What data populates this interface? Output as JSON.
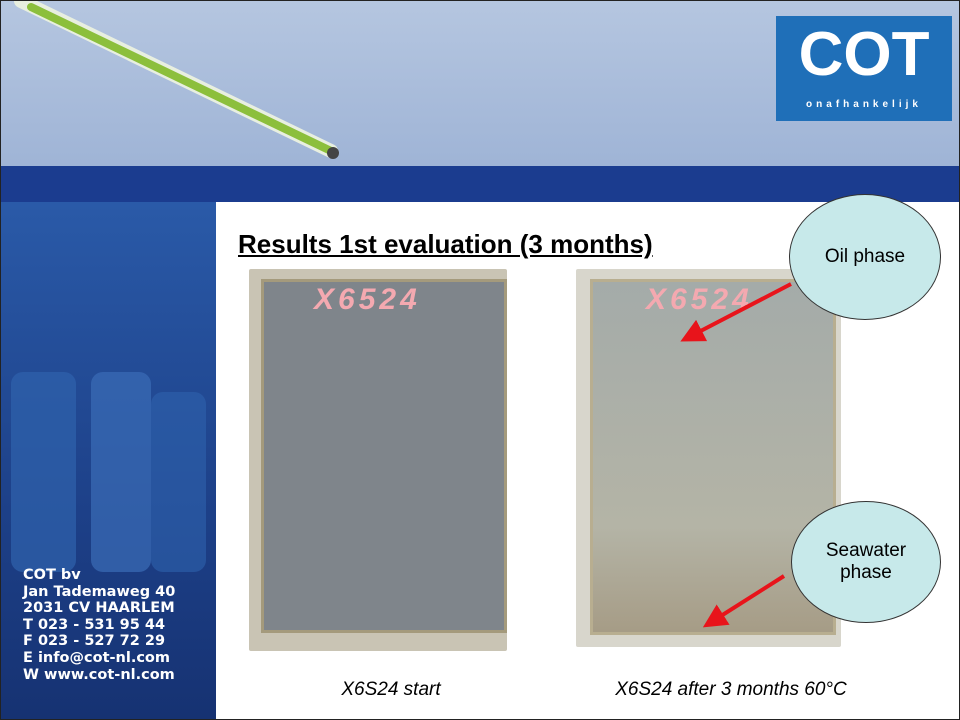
{
  "logo": {
    "name": "COT",
    "tagline": "onafhankelijk"
  },
  "slide": {
    "title": "Results 1st evaluation (3 months)",
    "callouts": [
      "Oil phase",
      "Seawater phase"
    ],
    "photos": [
      {
        "label": "X6524",
        "caption": "X6S24 start"
      },
      {
        "label": "X6524",
        "caption": "X6S24 after 3 months 60°C"
      }
    ]
  },
  "contact": [
    "COT bv",
    "Jan Tademaweg 40",
    "2031 CV  HAARLEM",
    "T  023 - 531 95 44",
    "F  023 - 527 72 29",
    "E  info@cot-nl.com",
    "W www.cot-nl.com"
  ]
}
